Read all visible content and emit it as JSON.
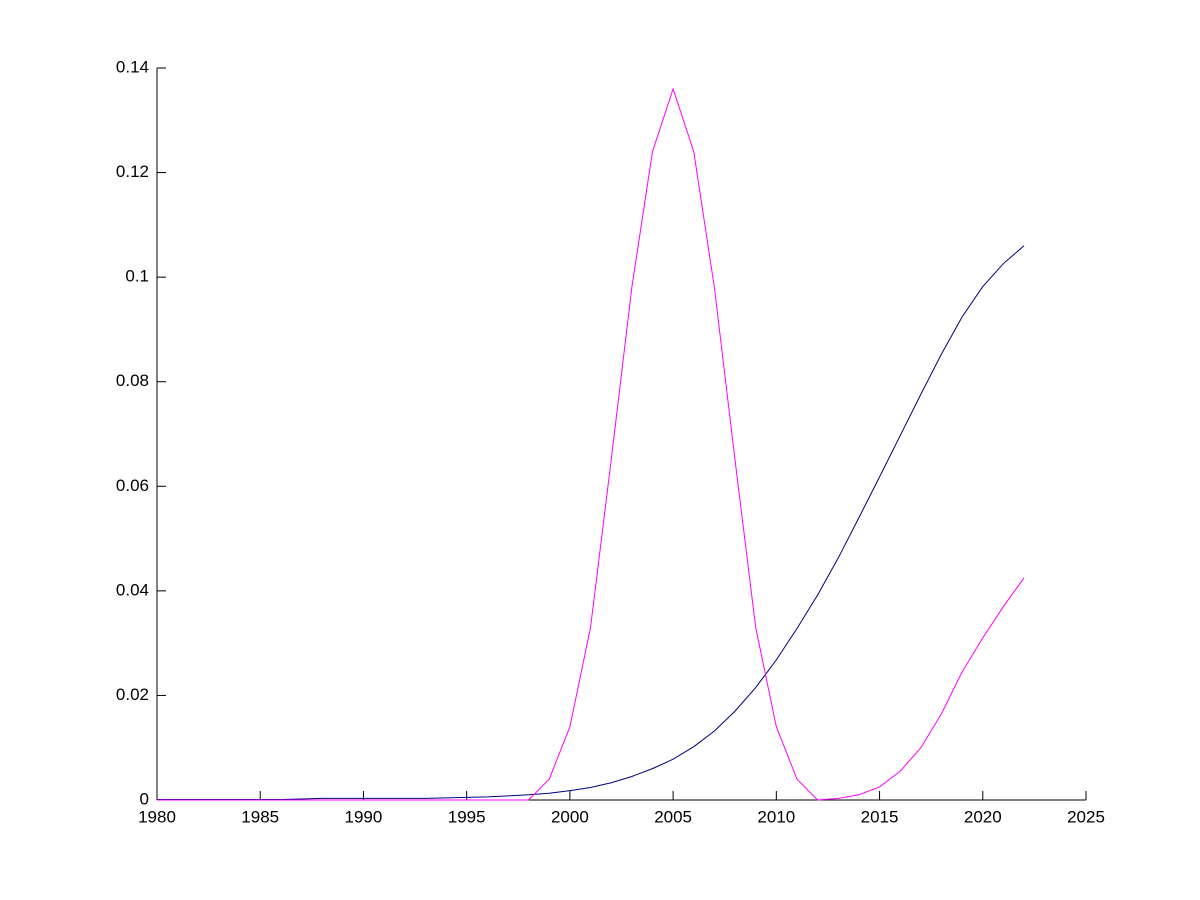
{
  "chart_data": {
    "type": "line",
    "x": [
      1980,
      1981,
      1982,
      1983,
      1984,
      1985,
      1986,
      1987,
      1988,
      1989,
      1990,
      1991,
      1992,
      1993,
      1994,
      1995,
      1996,
      1997,
      1998,
      1999,
      2000,
      2001,
      2002,
      2003,
      2004,
      2005,
      2006,
      2007,
      2008,
      2009,
      2010,
      2011,
      2012,
      2013,
      2014,
      2015,
      2016,
      2017,
      2018,
      2019,
      2020,
      2021,
      2022
    ],
    "series": [
      {
        "color": "#00007f",
        "values": [
          0.0001,
          0.0001,
          0.0001,
          0.0001,
          0.0001,
          0.0001,
          0.0001,
          0.0002,
          0.0003,
          0.0003,
          0.0003,
          0.0003,
          0.0003,
          0.0003,
          0.0004,
          0.0005,
          0.0006,
          0.0008,
          0.001,
          0.0013,
          0.0018,
          0.0024,
          0.0033,
          0.0045,
          0.006,
          0.0078,
          0.0102,
          0.0132,
          0.017,
          0.0215,
          0.0268,
          0.0328,
          0.0392,
          0.0463,
          0.054,
          0.0618,
          0.0697,
          0.0776,
          0.0853,
          0.0924,
          0.0982,
          0.1026,
          0.106
        ]
      },
      {
        "color": "#ff00ff",
        "values": [
          0,
          0,
          0,
          0,
          0,
          0,
          0,
          0,
          0,
          0,
          0,
          0,
          0,
          0,
          0,
          0,
          0,
          0,
          0,
          0.004,
          0.014,
          0.033,
          0.065,
          0.098,
          0.124,
          0.136,
          0.124,
          0.098,
          0.065,
          0.033,
          0.014,
          0.004,
          0,
          0.0003,
          0.001,
          0.0025,
          0.0055,
          0.01,
          0.0165,
          0.0245,
          0.031,
          0.037,
          0.0425
        ]
      }
    ],
    "xlim": [
      1980,
      2025
    ],
    "xticks": [
      1980,
      1985,
      1990,
      1995,
      2000,
      2005,
      2010,
      2015,
      2020,
      2025
    ],
    "ylim": [
      0,
      0.14
    ],
    "yticks": [
      0,
      0.02,
      0.04,
      0.06,
      0.08,
      0.1,
      0.12,
      0.14
    ]
  }
}
